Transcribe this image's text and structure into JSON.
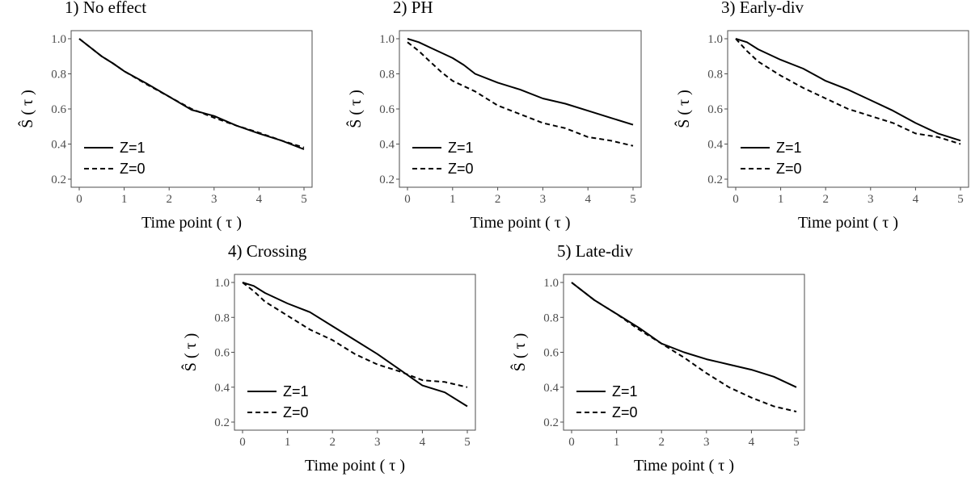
{
  "chart_data": [
    {
      "type": "line",
      "title": "1) No effect",
      "xlabel": "Time point ( τ )",
      "ylabel": "Ŝ ( τ )",
      "xlim": [
        0,
        5
      ],
      "ylim": [
        0.2,
        1.0
      ],
      "xticks": [
        0,
        1,
        2,
        3,
        4,
        5
      ],
      "yticks": [
        0.2,
        0.4,
        0.6,
        0.8,
        1.0
      ],
      "legend_position": "bottom-left",
      "series": [
        {
          "name": "Z=1",
          "line_style": "solid",
          "x": [
            0,
            0.25,
            0.5,
            0.75,
            1,
            1.5,
            2,
            2.5,
            3,
            3.5,
            4,
            4.5,
            5
          ],
          "y": [
            1.0,
            0.95,
            0.9,
            0.86,
            0.815,
            0.745,
            0.67,
            0.595,
            0.56,
            0.505,
            0.46,
            0.42,
            0.37
          ]
        },
        {
          "name": "Z=0",
          "line_style": "dashed",
          "x": [
            0,
            0.25,
            0.5,
            0.75,
            1,
            1.5,
            2,
            2.5,
            3,
            3.5,
            4,
            4.5,
            5
          ],
          "y": [
            1.0,
            0.95,
            0.9,
            0.86,
            0.815,
            0.74,
            0.67,
            0.6,
            0.55,
            0.505,
            0.465,
            0.42,
            0.38
          ]
        }
      ]
    },
    {
      "type": "line",
      "title": "2) PH",
      "xlabel": "Time point ( τ )",
      "ylabel": "Ŝ ( τ )",
      "xlim": [
        0,
        5
      ],
      "ylim": [
        0.2,
        1.0
      ],
      "xticks": [
        0,
        1,
        2,
        3,
        4,
        5
      ],
      "yticks": [
        0.2,
        0.4,
        0.6,
        0.8,
        1.0
      ],
      "legend_position": "bottom-left",
      "series": [
        {
          "name": "Z=1",
          "line_style": "solid",
          "x": [
            0,
            0.25,
            0.5,
            0.75,
            1,
            1.25,
            1.5,
            2,
            2.5,
            3,
            3.5,
            4,
            4.5,
            5
          ],
          "y": [
            1.0,
            0.98,
            0.95,
            0.92,
            0.89,
            0.85,
            0.8,
            0.75,
            0.71,
            0.66,
            0.63,
            0.59,
            0.55,
            0.51
          ]
        },
        {
          "name": "Z=0",
          "line_style": "dashed",
          "x": [
            0,
            0.25,
            0.5,
            0.75,
            1,
            1.5,
            2,
            2.5,
            3,
            3.5,
            4,
            4.5,
            5
          ],
          "y": [
            0.98,
            0.93,
            0.87,
            0.81,
            0.76,
            0.7,
            0.62,
            0.57,
            0.52,
            0.49,
            0.44,
            0.42,
            0.39
          ]
        }
      ]
    },
    {
      "type": "line",
      "title": "3) Early-div",
      "xlabel": "Time point ( τ )",
      "ylabel": "Ŝ ( τ )",
      "xlim": [
        0,
        5
      ],
      "ylim": [
        0.2,
        1.0
      ],
      "xticks": [
        0,
        1,
        2,
        3,
        4,
        5
      ],
      "yticks": [
        0.2,
        0.4,
        0.6,
        0.8,
        1.0
      ],
      "legend_position": "bottom-left",
      "series": [
        {
          "name": "Z=1",
          "line_style": "solid",
          "x": [
            0,
            0.25,
            0.5,
            0.75,
            1,
            1.5,
            2,
            2.5,
            3,
            3.5,
            4,
            4.5,
            5
          ],
          "y": [
            1.0,
            0.98,
            0.94,
            0.91,
            0.88,
            0.83,
            0.76,
            0.71,
            0.65,
            0.59,
            0.52,
            0.46,
            0.42
          ]
        },
        {
          "name": "Z=0",
          "line_style": "dashed",
          "x": [
            0,
            0.25,
            0.5,
            0.75,
            1,
            1.5,
            2,
            2.5,
            3,
            3.5,
            4,
            4.5,
            5
          ],
          "y": [
            1.0,
            0.93,
            0.87,
            0.83,
            0.79,
            0.72,
            0.66,
            0.6,
            0.56,
            0.52,
            0.46,
            0.44,
            0.4
          ]
        }
      ]
    },
    {
      "type": "line",
      "title": "4) Crossing",
      "xlabel": "Time point ( τ )",
      "ylabel": "Ŝ ( τ )",
      "xlim": [
        0,
        5
      ],
      "ylim": [
        0.2,
        1.0
      ],
      "xticks": [
        0,
        1,
        2,
        3,
        4,
        5
      ],
      "yticks": [
        0.2,
        0.4,
        0.6,
        0.8,
        1.0
      ],
      "legend_position": "bottom-left",
      "series": [
        {
          "name": "Z=1",
          "line_style": "solid",
          "x": [
            0,
            0.25,
            0.5,
            0.75,
            1,
            1.5,
            2,
            2.5,
            3,
            3.5,
            4,
            4.5,
            5
          ],
          "y": [
            1.0,
            0.98,
            0.94,
            0.91,
            0.88,
            0.83,
            0.75,
            0.67,
            0.59,
            0.5,
            0.41,
            0.37,
            0.29
          ]
        },
        {
          "name": "Z=0",
          "line_style": "dashed",
          "x": [
            0,
            0.25,
            0.5,
            0.75,
            1,
            1.5,
            2,
            2.5,
            3,
            3.5,
            4,
            4.5,
            5
          ],
          "y": [
            1.0,
            0.95,
            0.89,
            0.85,
            0.81,
            0.73,
            0.67,
            0.59,
            0.53,
            0.49,
            0.44,
            0.43,
            0.4
          ]
        }
      ]
    },
    {
      "type": "line",
      "title": "5) Late-div",
      "xlabel": "Time point ( τ )",
      "ylabel": "Ŝ ( τ )",
      "xlim": [
        0,
        5
      ],
      "ylim": [
        0.2,
        1.0
      ],
      "xticks": [
        0,
        1,
        2,
        3,
        4,
        5
      ],
      "yticks": [
        0.2,
        0.4,
        0.6,
        0.8,
        1.0
      ],
      "legend_position": "bottom-left",
      "series": [
        {
          "name": "Z=1",
          "line_style": "solid",
          "x": [
            0,
            0.25,
            0.5,
            0.75,
            1,
            1.5,
            2,
            2.5,
            3,
            3.5,
            4,
            4.5,
            5
          ],
          "y": [
            1.0,
            0.95,
            0.9,
            0.86,
            0.82,
            0.74,
            0.65,
            0.6,
            0.56,
            0.53,
            0.5,
            0.46,
            0.4
          ]
        },
        {
          "name": "Z=0",
          "line_style": "dashed",
          "x": [
            0,
            0.25,
            0.5,
            0.75,
            1,
            1.5,
            2,
            2.5,
            3,
            3.5,
            4,
            4.5,
            5
          ],
          "y": [
            1.0,
            0.95,
            0.9,
            0.86,
            0.82,
            0.73,
            0.65,
            0.57,
            0.48,
            0.4,
            0.34,
            0.29,
            0.26
          ]
        }
      ]
    }
  ]
}
